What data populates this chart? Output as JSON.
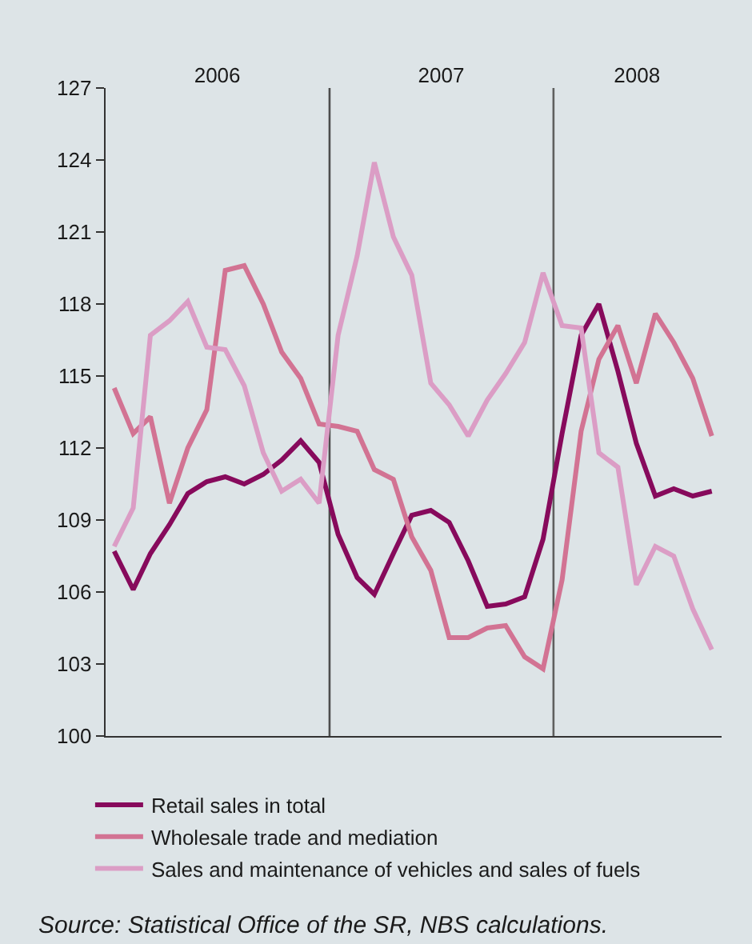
{
  "chart_data": {
    "type": "line",
    "x": [
      "2006-01-15",
      "2006-02-15",
      "2006-03-15",
      "2006-04-15",
      "2006-05-15",
      "2006-06-15",
      "2006-07-15",
      "2006-08-15",
      "2006-09-15",
      "2006-10-15",
      "2006-11-15",
      "2006-12-15",
      "2007-01-15",
      "2007-02-15",
      "2007-03-15",
      "2007-04-15",
      "2007-05-15",
      "2007-06-15",
      "2007-07-15",
      "2007-08-15",
      "2007-09-15",
      "2007-10-15",
      "2007-11-15",
      "2007-12-15",
      "2008-01-15",
      "2008-02-15",
      "2008-03-15",
      "2008-04-15",
      "2008-05-15",
      "2008-06-15",
      "2008-07-15",
      "2008-08-15",
      "2008-09-15"
    ],
    "series": [
      {
        "name": "Retail sales in total",
        "color": "#870a5c",
        "values": [
          107.7,
          106.1,
          107.6,
          108.8,
          110.1,
          110.6,
          110.8,
          110.5,
          110.9,
          111.5,
          112.3,
          111.4,
          108.4,
          106.6,
          105.9,
          107.6,
          109.2,
          109.4,
          108.9,
          107.3,
          105.4,
          105.5,
          105.8,
          108.2,
          112.6,
          116.7,
          118.0,
          115.2,
          112.2,
          110.0,
          110.3,
          110.0,
          110.2
        ]
      },
      {
        "name": "Wholesale trade and mediation",
        "color": "#d27393",
        "values": [
          114.5,
          112.6,
          113.3,
          109.7,
          112.0,
          113.6,
          119.4,
          119.6,
          118.0,
          116.0,
          114.9,
          113.0,
          112.9,
          112.7,
          111.1,
          110.7,
          108.3,
          106.9,
          104.1,
          104.1,
          104.5,
          104.6,
          103.3,
          102.8,
          106.5,
          112.7,
          115.7,
          117.1,
          114.7,
          117.6,
          116.4,
          114.9,
          112.5
        ]
      },
      {
        "name": "Sales and maintenance of vehicles and sales of fuels",
        "color": "#db9dc5",
        "values": [
          107.9,
          109.5,
          116.7,
          117.3,
          118.1,
          116.2,
          116.1,
          114.6,
          111.8,
          110.2,
          110.7,
          109.7,
          116.7,
          120.0,
          123.9,
          120.8,
          119.2,
          114.7,
          113.8,
          112.5,
          114.0,
          115.1,
          116.4,
          119.3,
          117.1,
          117.0,
          111.8,
          111.2,
          106.3,
          107.9,
          107.5,
          105.3,
          103.6
        ]
      }
    ],
    "xlim": [
      "2006-01-01",
      "2008-10-01"
    ],
    "xticks": [
      {
        "value": "2006-07-02",
        "label": "2006"
      },
      {
        "value": "2007-07-02",
        "label": "2007"
      },
      {
        "value": "2008-05-16",
        "label": "2008"
      }
    ],
    "ylim": [
      100,
      127
    ],
    "yticks": [
      100,
      103,
      106,
      109,
      112,
      115,
      118,
      121,
      124,
      127
    ],
    "ref_lines": [
      {
        "axis": "x",
        "value": "2007-01-01",
        "color": "#4d4d4d"
      },
      {
        "axis": "x",
        "value": "2008-01-01",
        "color": "#5f5f5f"
      }
    ],
    "legend": "bottom left",
    "annotations": [
      "Source: Statistical Office of the SR, NBS calculations."
    ]
  }
}
